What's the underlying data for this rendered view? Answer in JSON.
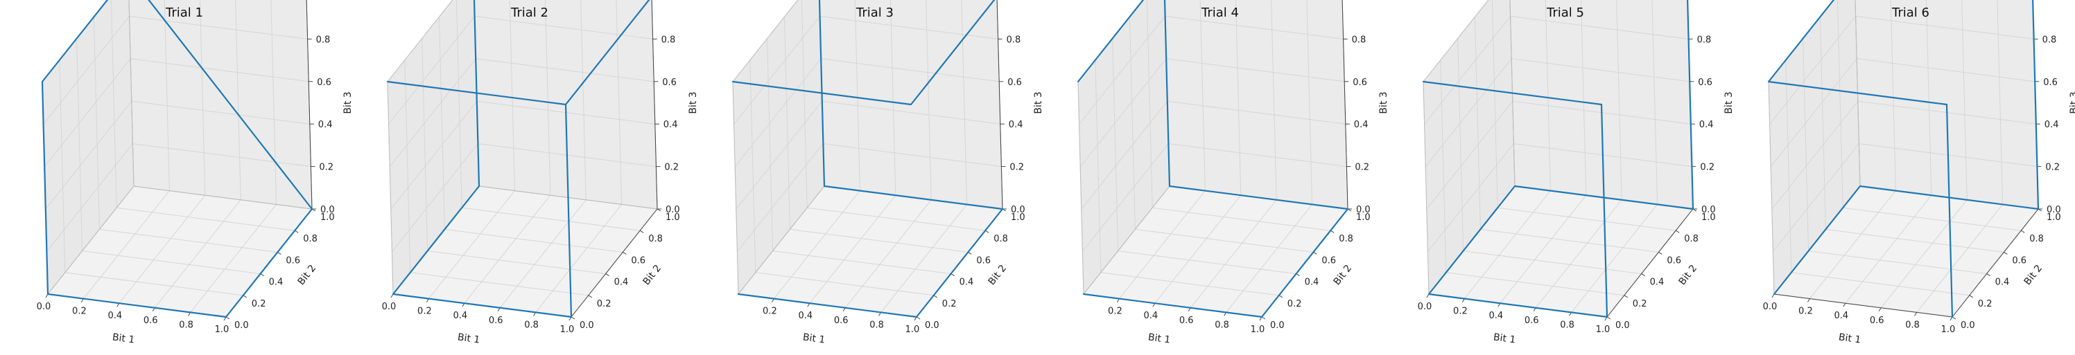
{
  "colors": {
    "series": "#1f77b4",
    "pane": "#ebebeb",
    "grid": "#d6d6d6"
  },
  "chart_data": [
    {
      "type": "line3d",
      "title": "Trial 1",
      "xlabel": "Bit 1",
      "ylabel": "Bit 2",
      "zlabel": "Bit 3",
      "xlim": [
        0,
        1
      ],
      "ylim": [
        0,
        1
      ],
      "zlim": [
        0,
        1
      ],
      "xticks": [
        "0.0",
        "0.2",
        "0.4",
        "0.6",
        "0.8",
        "1.0"
      ],
      "yticks": [
        "0.0",
        "0.2",
        "0.4",
        "0.6",
        "0.8",
        "1.0"
      ],
      "zticks": [
        "0.0",
        "0.2",
        "0.4",
        "0.6",
        "0.8",
        "1.0"
      ],
      "grid": true,
      "points": [
        [
          0,
          0,
          0
        ],
        [
          1,
          0,
          0
        ],
        [
          1,
          1,
          0
        ],
        [
          0,
          1,
          1
        ],
        [
          0,
          0,
          1
        ],
        [
          0,
          0,
          0
        ]
      ]
    },
    {
      "type": "line3d",
      "title": "Trial 2",
      "xlabel": "Bit 1",
      "ylabel": "Bit 2",
      "zlabel": "Bit 3",
      "xlim": [
        0,
        1
      ],
      "ylim": [
        0,
        1
      ],
      "zlim": [
        0,
        1
      ],
      "xticks": [
        "0.0",
        "0.2",
        "0.4",
        "0.6",
        "0.8",
        "1.0"
      ],
      "yticks": [
        "0.0",
        "0.2",
        "0.4",
        "0.6",
        "0.8",
        "1.0"
      ],
      "zticks": [
        "0.0",
        "0.2",
        "0.4",
        "0.6",
        "0.8",
        "1.0"
      ],
      "grid": true,
      "points": [
        [
          0,
          0,
          1
        ],
        [
          1,
          0,
          1
        ],
        [
          1,
          1,
          1
        ],
        [
          0,
          1,
          1
        ],
        [
          0,
          1,
          0
        ],
        [
          0,
          0,
          0
        ],
        [
          1,
          0,
          0
        ],
        [
          1,
          0,
          1
        ]
      ]
    },
    {
      "type": "line3d",
      "title": "Trial 3",
      "xlabel": "Bit 1",
      "ylabel": "Bit 2",
      "zlabel": "Bit 3",
      "xlim": [
        0,
        1
      ],
      "ylim": [
        0,
        1
      ],
      "zlim": [
        0,
        1
      ],
      "xticks": [
        "0.2",
        "0.4",
        "0.6",
        "0.8",
        "1.0"
      ],
      "yticks": [
        "0.0",
        "0.2",
        "0.4",
        "0.6",
        "0.8",
        "1.0"
      ],
      "zticks": [
        "0.0",
        "0.2",
        "0.4",
        "0.6",
        "0.8",
        "1.0"
      ],
      "grid": true,
      "points": [
        [
          0,
          0,
          1
        ],
        [
          1,
          0,
          1
        ],
        [
          1,
          1,
          1
        ],
        [
          0,
          1,
          1
        ],
        [
          0,
          1,
          0
        ],
        [
          1,
          1,
          0
        ],
        [
          1,
          0,
          0
        ],
        [
          0,
          0,
          0
        ]
      ]
    },
    {
      "type": "line3d",
      "title": "Trial 4",
      "xlabel": "Bit 1",
      "ylabel": "Bit 2",
      "zlabel": "Bit 3",
      "xlim": [
        0,
        1
      ],
      "ylim": [
        0,
        1
      ],
      "zlim": [
        0,
        1
      ],
      "xticks": [
        "0.2",
        "0.4",
        "0.6",
        "0.8",
        "1.0"
      ],
      "yticks": [
        "0.0",
        "0.2",
        "0.4",
        "0.6",
        "0.8",
        "1.0"
      ],
      "zticks": [
        "0.0",
        "0.2",
        "0.4",
        "0.6",
        "0.8",
        "1.0"
      ],
      "grid": true,
      "points": [
        [
          0,
          0,
          1
        ],
        [
          0,
          1,
          1
        ],
        [
          0,
          1,
          0
        ],
        [
          1,
          1,
          0
        ],
        [
          1,
          0,
          0
        ],
        [
          0,
          0,
          0
        ]
      ]
    },
    {
      "type": "line3d",
      "title": "Trial 5",
      "xlabel": "Bit 1",
      "ylabel": "Bit 2",
      "zlabel": "Bit 3",
      "xlim": [
        0,
        1
      ],
      "ylim": [
        0,
        1
      ],
      "zlim": [
        0,
        1
      ],
      "xticks": [
        "0.0",
        "0.2",
        "0.4",
        "0.6",
        "0.8",
        "1.0"
      ],
      "yticks": [
        "0.0",
        "0.2",
        "0.4",
        "0.6",
        "0.8",
        "1.0"
      ],
      "zticks": [
        "0.0",
        "0.2",
        "0.4",
        "0.6",
        "0.8",
        "1.0"
      ],
      "grid": true,
      "points": [
        [
          0,
          0,
          1
        ],
        [
          1,
          0,
          1
        ],
        [
          1,
          0,
          0
        ],
        [
          0,
          0,
          0
        ],
        [
          0,
          1,
          0
        ],
        [
          1,
          1,
          0
        ],
        [
          1,
          1,
          1
        ],
        [
          0,
          1,
          1
        ]
      ]
    },
    {
      "type": "line3d",
      "title": "Trial 6",
      "xlabel": "Bit 1",
      "ylabel": "Bit 2",
      "zlabel": "Bit 3",
      "xlim": [
        0,
        1
      ],
      "ylim": [
        0,
        1
      ],
      "zlim": [
        0,
        1
      ],
      "xticks": [
        "0.0",
        "0.2",
        "0.4",
        "0.6",
        "0.8",
        "1.0"
      ],
      "yticks": [
        "0.0",
        "0.2",
        "0.4",
        "0.6",
        "0.8",
        "1.0"
      ],
      "zticks": [
        "0.0",
        "0.2",
        "0.4",
        "0.6",
        "0.8",
        "1.0"
      ],
      "grid": true,
      "points": [
        [
          1,
          0,
          0
        ],
        [
          1,
          0,
          1
        ],
        [
          0,
          0,
          1
        ],
        [
          0,
          1,
          1
        ],
        [
          1,
          1,
          1
        ],
        [
          1,
          1,
          0
        ],
        [
          0,
          1,
          0
        ],
        [
          0,
          0,
          0
        ]
      ]
    }
  ]
}
